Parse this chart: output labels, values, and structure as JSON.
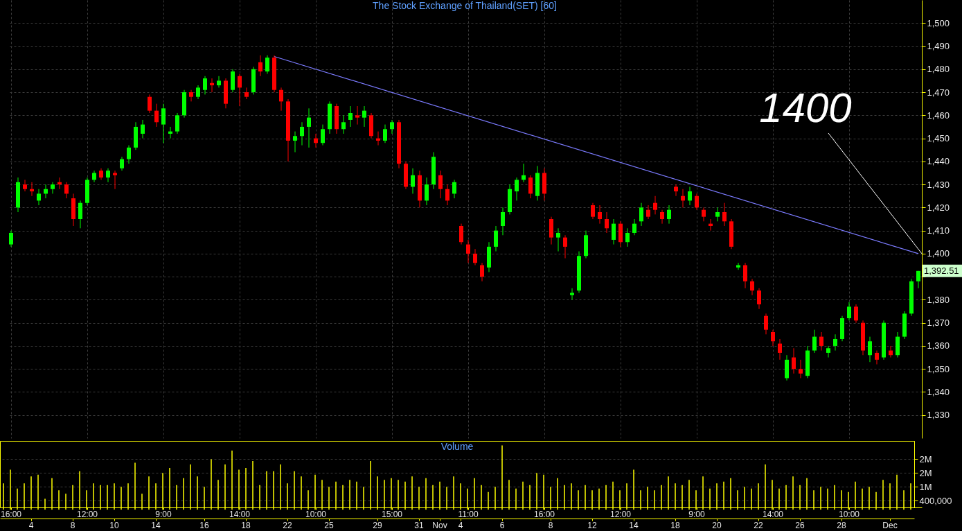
{
  "chart_data": [
    {
      "type": "candlestick",
      "title": "The Stock Exchange of Thailand(SET) [60]",
      "categories": [
        "16:00",
        null,
        null,
        null,
        null,
        null,
        null,
        null,
        null,
        null,
        null,
        "12:00",
        null,
        null,
        null,
        null,
        null,
        null,
        null,
        null,
        null,
        null,
        "9:00",
        null,
        null,
        null,
        null,
        null,
        null,
        null,
        null,
        null,
        null,
        "14:00",
        null,
        null,
        null,
        null,
        null,
        null,
        null,
        null,
        null,
        null,
        "10:00",
        null,
        null,
        null,
        null,
        null,
        null,
        null,
        null,
        null,
        null,
        "15:00",
        null,
        null,
        null,
        null,
        null,
        null,
        null,
        null,
        null,
        null,
        "11:00",
        null,
        null,
        null,
        null,
        null,
        null,
        null,
        null,
        null,
        null,
        "16:00",
        null,
        null,
        null,
        null,
        null,
        null,
        null,
        null,
        null,
        null,
        "12:00",
        null,
        null,
        null,
        null,
        null,
        null,
        null,
        null,
        null,
        null,
        "9:00",
        null,
        null,
        null,
        null,
        null,
        null,
        null,
        null,
        null,
        null,
        "14:00",
        null,
        null,
        null,
        null,
        null,
        null,
        null,
        null,
        null,
        null,
        "10:00",
        null,
        null,
        null,
        null,
        null,
        null,
        null,
        null,
        null,
        null
      ],
      "ohlc": [
        [
          1404,
          1410,
          1403,
          1409
        ],
        [
          1420,
          1433,
          1418,
          1431
        ],
        [
          1430,
          1432,
          1427,
          1428
        ],
        [
          1428,
          1431,
          1425,
          1427
        ],
        [
          1423,
          1428,
          1421,
          1426
        ],
        [
          1426,
          1430,
          1424,
          1428
        ],
        [
          1428,
          1431,
          1426,
          1430
        ],
        [
          1431,
          1433,
          1428,
          1430
        ],
        [
          1430,
          1431,
          1424,
          1426
        ],
        [
          1424,
          1426,
          1412,
          1415
        ],
        [
          1415,
          1423,
          1411,
          1422
        ],
        [
          1422,
          1433,
          1421,
          1432
        ],
        [
          1432,
          1436,
          1431,
          1435
        ],
        [
          1436,
          1437,
          1432,
          1433
        ],
        [
          1433,
          1437,
          1431,
          1436
        ],
        [
          1435,
          1436,
          1428,
          1434
        ],
        [
          1437,
          1442,
          1436,
          1441
        ],
        [
          1441,
          1447,
          1439,
          1446
        ],
        [
          1446,
          1457,
          1445,
          1455
        ],
        [
          1452,
          1458,
          1450,
          1456
        ],
        [
          1468,
          1469,
          1461,
          1462
        ],
        [
          1462,
          1465,
          1455,
          1457
        ],
        [
          1456,
          1465,
          1448,
          1463
        ],
        [
          1452,
          1455,
          1450,
          1453
        ],
        [
          1453,
          1461,
          1452,
          1460
        ],
        [
          1460,
          1471,
          1459,
          1470
        ],
        [
          1470,
          1471,
          1466,
          1468
        ],
        [
          1468,
          1473,
          1467,
          1472
        ],
        [
          1471,
          1477,
          1469,
          1476
        ],
        [
          1474,
          1476,
          1470,
          1473
        ],
        [
          1473,
          1477,
          1472,
          1475
        ],
        [
          1475,
          1476,
          1463,
          1465
        ],
        [
          1471,
          1480,
          1470,
          1479
        ],
        [
          1477,
          1478,
          1464,
          1472
        ],
        [
          1470,
          1472,
          1467,
          1468
        ],
        [
          1470,
          1481,
          1469,
          1480
        ],
        [
          1483,
          1486,
          1477,
          1479
        ],
        [
          1479,
          1486,
          1478,
          1485
        ],
        [
          1485,
          1486,
          1470,
          1471
        ],
        [
          1471,
          1472,
          1462,
          1466
        ],
        [
          1466,
          1467,
          1440,
          1449
        ],
        [
          1449,
          1453,
          1444,
          1451
        ],
        [
          1451,
          1457,
          1447,
          1455
        ],
        [
          1455,
          1463,
          1446,
          1459
        ],
        [
          1450,
          1452,
          1446,
          1448
        ],
        [
          1448,
          1456,
          1447,
          1454
        ],
        [
          1454,
          1466,
          1452,
          1465
        ],
        [
          1464,
          1465,
          1452,
          1454
        ],
        [
          1454,
          1460,
          1452,
          1457
        ],
        [
          1458,
          1464,
          1455,
          1461
        ],
        [
          1460,
          1464,
          1456,
          1459
        ],
        [
          1459,
          1464,
          1455,
          1462
        ],
        [
          1460,
          1461,
          1450,
          1451
        ],
        [
          1450,
          1453,
          1447,
          1449
        ],
        [
          1449,
          1456,
          1448,
          1454
        ],
        [
          1454,
          1458,
          1452,
          1457
        ],
        [
          1457,
          1458,
          1437,
          1439
        ],
        [
          1439,
          1440,
          1428,
          1429
        ],
        [
          1429,
          1437,
          1426,
          1434
        ],
        [
          1434,
          1436,
          1420,
          1423
        ],
        [
          1423,
          1433,
          1421,
          1430
        ],
        [
          1430,
          1444,
          1428,
          1442
        ],
        [
          1434,
          1436,
          1424,
          1428
        ],
        [
          1428,
          1430,
          1421,
          1423
        ],
        [
          1426,
          1432,
          1424,
          1431
        ],
        [
          1412,
          1413,
          1404,
          1405
        ],
        [
          1404,
          1406,
          1396,
          1400
        ],
        [
          1400,
          1402,
          1395,
          1396
        ],
        [
          1395,
          1396,
          1388,
          1390
        ],
        [
          1394,
          1405,
          1392,
          1403
        ],
        [
          1403,
          1412,
          1401,
          1410
        ],
        [
          1412,
          1420,
          1408,
          1418
        ],
        [
          1418,
          1430,
          1417,
          1428
        ],
        [
          1427,
          1433,
          1423,
          1432
        ],
        [
          1432,
          1439,
          1431,
          1434
        ],
        [
          1433,
          1434,
          1424,
          1426
        ],
        [
          1425,
          1438,
          1423,
          1435
        ],
        [
          1435,
          1437,
          1423,
          1426
        ],
        [
          1415,
          1416,
          1404,
          1407
        ],
        [
          1407,
          1411,
          1401,
          1409
        ],
        [
          1407,
          1408,
          1398,
          1403
        ],
        [
          1382,
          1385,
          1380,
          1383
        ],
        [
          1384,
          1401,
          1383,
          1399
        ],
        [
          1399,
          1410,
          1398,
          1408
        ],
        [
          1421,
          1422,
          1415,
          1416
        ],
        [
          1418,
          1421,
          1413,
          1415
        ],
        [
          1415,
          1418,
          1409,
          1411
        ],
        [
          1406,
          1415,
          1404,
          1413
        ],
        [
          1413,
          1414,
          1403,
          1405
        ],
        [
          1405,
          1411,
          1403,
          1409
        ],
        [
          1409,
          1415,
          1408,
          1413
        ],
        [
          1414,
          1422,
          1412,
          1420
        ],
        [
          1419,
          1421,
          1415,
          1416
        ],
        [
          1422,
          1425,
          1417,
          1419
        ],
        [
          1418,
          1419,
          1413,
          1415
        ],
        [
          1415,
          1421,
          1413,
          1419
        ],
        [
          1429,
          1430,
          1425,
          1427
        ],
        [
          1425,
          1428,
          1420,
          1423
        ],
        [
          1423,
          1429,
          1421,
          1427
        ],
        [
          1425,
          1426,
          1419,
          1420
        ],
        [
          1419,
          1420,
          1414,
          1416
        ],
        [
          1413,
          1415,
          1410,
          1412
        ],
        [
          1416,
          1420,
          1414,
          1418
        ],
        [
          1418,
          1422,
          1412,
          1414
        ],
        [
          1414,
          1415,
          1402,
          1403
        ],
        [
          1394,
          1396,
          1393,
          1395
        ],
        [
          1395,
          1396,
          1385,
          1388
        ],
        [
          1388,
          1389,
          1382,
          1384
        ],
        [
          1384,
          1385,
          1376,
          1378
        ],
        [
          1373,
          1374,
          1365,
          1367
        ],
        [
          1366,
          1367,
          1360,
          1362
        ],
        [
          1361,
          1363,
          1354,
          1357
        ],
        [
          1346,
          1356,
          1345,
          1354
        ],
        [
          1355,
          1359,
          1348,
          1350
        ],
        [
          1350,
          1354,
          1346,
          1348
        ],
        [
          1347,
          1360,
          1346,
          1358
        ],
        [
          1358,
          1367,
          1357,
          1364
        ],
        [
          1364,
          1366,
          1358,
          1360
        ],
        [
          1357,
          1360,
          1355,
          1359
        ],
        [
          1360,
          1365,
          1358,
          1363
        ],
        [
          1363,
          1373,
          1362,
          1372
        ],
        [
          1372,
          1379,
          1371,
          1377
        ],
        [
          1377,
          1378,
          1370,
          1371
        ],
        [
          1370,
          1371,
          1356,
          1358
        ],
        [
          1356,
          1364,
          1353,
          1362
        ],
        [
          1357,
          1358,
          1352,
          1354
        ],
        [
          1355,
          1371,
          1354,
          1370
        ],
        [
          1358,
          1360,
          1355,
          1356
        ],
        [
          1356,
          1366,
          1355,
          1364
        ],
        [
          1364,
          1375,
          1363,
          1374
        ],
        [
          1374,
          1389,
          1373,
          1388
        ],
        [
          1388,
          1392.51,
          1385,
          1392.51
        ]
      ],
      "colors": [
        "#00ff00",
        "#00ff00",
        "#ff0000",
        "#ff0000",
        "#00ff00",
        "#00ff00",
        "#00ff00",
        "#ff0000",
        "#ff0000",
        "#ff0000",
        "#00ff00",
        "#00ff00",
        "#00ff00",
        "#ff0000",
        "#00ff00",
        "#ff0000",
        "#00ff00",
        "#00ff00",
        "#00ff00",
        "#00ff00",
        "#ff0000",
        "#ff0000",
        "#00ff00",
        "#00ff00",
        "#00ff00",
        "#00ff00",
        "#ff0000",
        "#00ff00",
        "#00ff00",
        "#ff0000",
        "#00ff00",
        "#ff0000",
        "#00ff00",
        "#ff0000",
        "#ff0000",
        "#00ff00",
        "#ff0000",
        "#00ff00",
        "#ff0000",
        "#ff0000",
        "#ff0000",
        "#00ff00",
        "#00ff00",
        "#00ff00",
        "#ff0000",
        "#00ff00",
        "#00ff00",
        "#ff0000",
        "#00ff00",
        "#00ff00",
        "#ff0000",
        "#00ff00",
        "#ff0000",
        "#ff0000",
        "#00ff00",
        "#00ff00",
        "#ff0000",
        "#ff0000",
        "#00ff00",
        "#ff0000",
        "#00ff00",
        "#00ff00",
        "#ff0000",
        "#ff0000",
        "#00ff00",
        "#ff0000",
        "#ff0000",
        "#ff0000",
        "#ff0000",
        "#00ff00",
        "#00ff00",
        "#00ff00",
        "#00ff00",
        "#00ff00",
        "#00ff00",
        "#ff0000",
        "#00ff00",
        "#ff0000",
        "#ff0000",
        "#00ff00",
        "#ff0000",
        "#00ff00",
        "#00ff00",
        "#00ff00",
        "#ff0000",
        "#ff0000",
        "#ff0000",
        "#00ff00",
        "#ff0000",
        "#00ff00",
        "#00ff00",
        "#00ff00",
        "#ff0000",
        "#ff0000",
        "#ff0000",
        "#00ff00",
        "#ff0000",
        "#ff0000",
        "#00ff00",
        "#ff0000",
        "#ff0000",
        "#ff0000",
        "#00ff00",
        "#ff0000",
        "#ff0000",
        "#00ff00",
        "#ff0000",
        "#ff0000",
        "#ff0000",
        "#ff0000",
        "#ff0000",
        "#ff0000",
        "#00ff00",
        "#ff0000",
        "#ff0000",
        "#00ff00",
        "#00ff00",
        "#ff0000",
        "#00ff00",
        "#00ff00",
        "#00ff00",
        "#00ff00",
        "#ff0000",
        "#ff0000",
        "#00ff00",
        "#ff0000",
        "#00ff00",
        "#ff0000",
        "#00ff00",
        "#00ff00",
        "#00ff00",
        "#00ff00"
      ],
      "series": [
        {
          "type": "line",
          "color": "#7b7bff",
          "values": [
            null,
            null,
            null,
            null,
            null,
            null,
            null,
            null,
            null,
            null,
            null,
            null,
            null,
            null,
            null,
            null,
            null,
            null,
            null,
            null,
            null,
            null,
            null,
            null,
            null,
            null,
            null,
            null,
            null,
            null,
            null,
            null,
            null,
            null,
            null,
            null,
            null,
            null,
            1485.5,
            null,
            null,
            null,
            null,
            null,
            null,
            null,
            null,
            null,
            null,
            null,
            null,
            null,
            null,
            null,
            null,
            null,
            null,
            null,
            null,
            null,
            null,
            null,
            null,
            null,
            null,
            null,
            null,
            null,
            null,
            null,
            null,
            null,
            null,
            null,
            null,
            null,
            null,
            null,
            null,
            null,
            null,
            null,
            null,
            null,
            null,
            null,
            null,
            null,
            null,
            null,
            null,
            null,
            null,
            null,
            null,
            null,
            null,
            null,
            null,
            null,
            null,
            null,
            null,
            null,
            null,
            null,
            null,
            null,
            null,
            null,
            null,
            null,
            null,
            null,
            null,
            null,
            null,
            null,
            null,
            null,
            null,
            null,
            null,
            null,
            null,
            null,
            null,
            null,
            null,
            null,
            null,
            1400
          ]
        }
      ],
      "ylim": [
        1320,
        1510
      ],
      "yticks": [
        {
          "value": 1330,
          "label": "1,330"
        },
        {
          "value": 1340,
          "label": "1,340"
        },
        {
          "value": 1350,
          "label": "1,350"
        },
        {
          "value": 1360,
          "label": "1,360"
        },
        {
          "value": 1370,
          "label": "1,370"
        },
        {
          "value": 1380,
          "label": "1,380"
        },
        {
          "value": 1390,
          "label": null
        },
        {
          "value": 1400,
          "label": "1,400"
        },
        {
          "value": 1410,
          "label": "1,410"
        },
        {
          "value": 1420,
          "label": "1,420"
        },
        {
          "value": 1430,
          "label": "1,430"
        },
        {
          "value": 1440,
          "label": "1,440"
        },
        {
          "value": 1450,
          "label": "1,450"
        },
        {
          "value": 1460,
          "label": "1,460"
        },
        {
          "value": 1470,
          "label": "1,470"
        },
        {
          "value": 1480,
          "label": "1,480"
        },
        {
          "value": 1490,
          "label": "1,490"
        },
        {
          "value": 1500,
          "label": "1,500"
        }
      ],
      "grid": true,
      "annotations": [
        "1400",
        "1,392.51"
      ]
    },
    {
      "type": "bar",
      "title": "Volume",
      "color": "#ffff00",
      "categories": [
        null,
        null,
        null,
        null,
        "4",
        null,
        null,
        null,
        null,
        null,
        "8",
        null,
        null,
        null,
        null,
        null,
        "10",
        null,
        null,
        null,
        null,
        null,
        "14",
        null,
        null,
        null,
        null,
        null,
        null,
        "16",
        null,
        null,
        null,
        null,
        null,
        "18",
        null,
        null,
        null,
        null,
        null,
        "22",
        null,
        null,
        null,
        null,
        null,
        "25",
        null,
        null,
        null,
        null,
        null,
        null,
        "29",
        null,
        null,
        null,
        null,
        null,
        "31",
        null,
        null,
        "Nov",
        null,
        null,
        "4",
        null,
        null,
        null,
        null,
        null,
        "6",
        null,
        null,
        null,
        null,
        null,
        null,
        "8",
        null,
        null,
        null,
        null,
        null,
        "12",
        null,
        null,
        null,
        null,
        null,
        "14",
        null,
        null,
        null,
        null,
        null,
        "18",
        null,
        null,
        null,
        null,
        null,
        "20",
        null,
        null,
        null,
        null,
        null,
        "22",
        null,
        null,
        null,
        null,
        null,
        "26",
        null,
        null,
        null,
        null,
        null,
        "28",
        null,
        null,
        null,
        null,
        null,
        null,
        "Dec",
        null,
        null,
        null
      ],
      "values": [
        1150000,
        1750000,
        925000,
        1150000,
        1450000,
        1525000,
        475000,
        1375000,
        850000,
        700000,
        1075000,
        1675000,
        850000,
        1150000,
        1075000,
        1075000,
        1150000,
        1000000,
        1150000,
        2050000,
        700000,
        1450000,
        1150000,
        1600000,
        1825000,
        1075000,
        1375000,
        1975000,
        1450000,
        1000000,
        2200000,
        1300000,
        1975000,
        2575000,
        1750000,
        1825000,
        2125000,
        1075000,
        1675000,
        1675000,
        1975000,
        1150000,
        1675000,
        1450000,
        850000,
        1525000,
        1300000,
        1000000,
        1225000,
        1075000,
        1300000,
        1225000,
        1000000,
        2125000,
        1450000,
        1300000,
        1375000,
        1300000,
        1225000,
        1450000,
        1000000,
        1375000,
        1075000,
        1225000,
        1000000,
        1450000,
        1150000,
        925000,
        1375000,
        1075000,
        775000,
        1000000,
        2800000,
        1300000,
        925000,
        1225000,
        1075000,
        1600000,
        1525000,
        1000000,
        1375000,
        1075000,
        1150000,
        850000,
        1075000,
        850000,
        925000,
        1075000,
        1225000,
        850000,
        1150000,
        1750000,
        850000,
        1000000,
        850000,
        1075000,
        1450000,
        1150000,
        1075000,
        1300000,
        850000,
        1450000,
        925000,
        1150000,
        1225000,
        1375000,
        850000,
        1000000,
        925000,
        1150000,
        1975000,
        1300000,
        925000,
        1075000,
        1450000,
        1075000,
        1375000,
        850000,
        1000000,
        925000,
        1075000,
        850000,
        775000,
        1225000,
        925000,
        1000000,
        775000,
        1300000,
        1150000,
        1525000,
        850000,
        1150000
      ],
      "ylim": [
        100000,
        3000000
      ],
      "yticks": [
        {
          "value": 400000,
          "label": "400,000"
        },
        {
          "value": 1000000,
          "label": "1M"
        },
        {
          "value": 1600000,
          "label": "2M"
        },
        {
          "value": 2200000,
          "label": "2M"
        }
      ],
      "grid": "y"
    }
  ]
}
